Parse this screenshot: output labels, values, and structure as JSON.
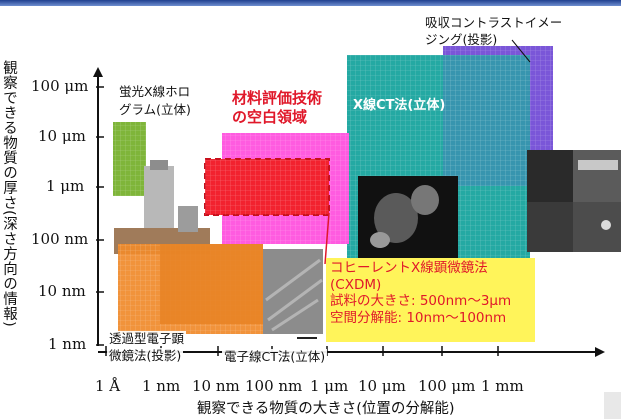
{
  "axes": {
    "y_label": "観察できる物質の厚さ(深さ方向の情報)",
    "x_label": "観察できる物質の大きさ(位置の分解能)",
    "y_ticks": [
      "100 μm",
      "10 μm",
      "1 μm",
      "100 nm",
      "10 nm",
      "1 nm"
    ],
    "x_ticks": [
      "1 Å",
      "1 nm",
      "10 nm",
      "100 nm",
      "1 μm",
      "10 μm",
      "100 μm",
      "1 mm"
    ]
  },
  "regions": {
    "fluorescence": {
      "label_line1": "蛍光X線ホロ",
      "label_line2": "グラム(立体)",
      "color": "#7fb53a"
    },
    "tem": {
      "label_line1": "透過型電子顕",
      "label_line2": "微鏡法(投影)",
      "color": "#f08a2a"
    },
    "electron_ct": {
      "label": "電子線CT法(立体)",
      "color": "#f08a2a"
    },
    "gap": {
      "label_line1": "材料評価技術",
      "label_line2": "の空白領域",
      "color": "#ff5be0",
      "inner_color": "#f2222f"
    },
    "xray_ct": {
      "label": "X線CT法(立体)",
      "color": "#24a9a3"
    },
    "absorption": {
      "label_line1": "吸収コントラストイメー",
      "label_line2": "ジング(投影)",
      "color": "#7a56d8"
    },
    "cxdm": {
      "line1": "コヒーレントX線顕微鏡法",
      "line2": "(CXDM)",
      "line3": "試料の大きさ: 500nm〜3μm",
      "line4": "空間分解能: 10nm〜100nm",
      "box_color": "#fff45a",
      "text_color": "#e0182a"
    }
  }
}
